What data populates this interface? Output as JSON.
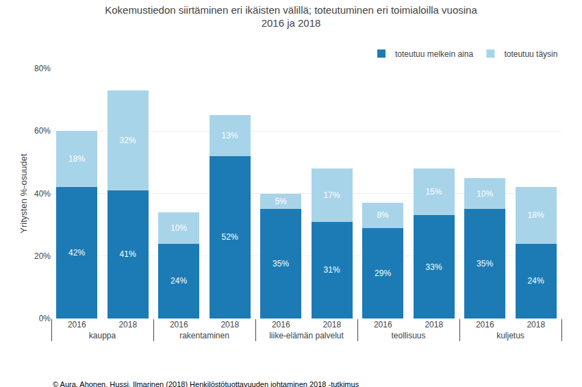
{
  "chart_data": {
    "type": "bar",
    "title": "Kokemustiedon siirtäminen eri ikäisten välillä; toteutuminen eri toimialoilla vuosina\n2016 ja 2018",
    "ylabel": "Yritysten %-osuudet",
    "footer": "© Aura, Ahonen, Hussi, Ilmarinen (2018) Henkilöstötuottavuuden johtaminen 2018 -tutkimus",
    "categories": [
      [
        "kauppa",
        "2016"
      ],
      [
        "kauppa",
        "2018"
      ],
      [
        "rakentaminen",
        "2016"
      ],
      [
        "rakentaminen",
        "2018"
      ],
      [
        "liike-elämän palvelut",
        "2016"
      ],
      [
        "liike-elämän palvelut",
        "2018"
      ],
      [
        "teollisuus",
        "2016"
      ],
      [
        "teollisuus",
        "2018"
      ],
      [
        "kuljetus",
        "2016"
      ],
      [
        "kuljetus",
        "2018"
      ]
    ],
    "series": [
      {
        "name": "toteutuu melkein aina",
        "color": "#1C7BB5",
        "values": [
          42,
          41,
          24,
          52,
          35,
          31,
          29,
          33,
          35,
          24
        ],
        "value_labels": [
          "42%",
          "41%",
          "24%",
          "52%",
          "35%",
          "31%",
          "29%",
          "33%",
          "35%",
          "24%"
        ]
      },
      {
        "name": "toteutuu täysin",
        "color": "#A8D4EA",
        "values": [
          18,
          32,
          10,
          13,
          5,
          17,
          8,
          15,
          10,
          18
        ],
        "value_labels": [
          "18%",
          "32%",
          "10%",
          "13%",
          "5%",
          "17%",
          "8%",
          "15%",
          "10%",
          "18%"
        ]
      }
    ],
    "stacked": true,
    "data_labels": true,
    "ylim": [
      0,
      80
    ],
    "yticks": [
      {
        "value": 0,
        "label": "0%"
      },
      {
        "value": 20,
        "label": "20%"
      },
      {
        "value": 40,
        "label": "40%"
      },
      {
        "value": 60,
        "label": "60%"
      },
      {
        "value": 80,
        "label": "80%"
      }
    ],
    "grid": true,
    "legend": "upper right"
  }
}
